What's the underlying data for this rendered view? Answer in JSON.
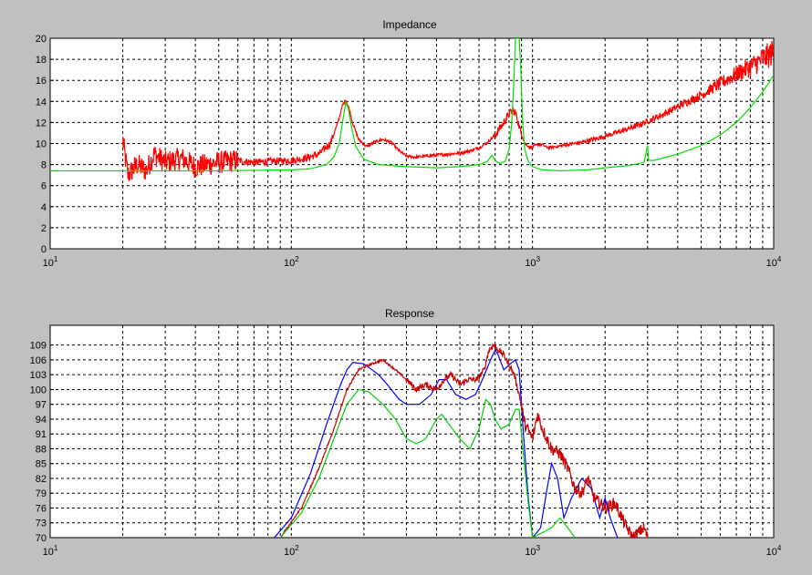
{
  "window": {
    "background": "#c0c0c0"
  },
  "chart_data": [
    {
      "type": "line",
      "title": "Impedance",
      "xlabel": "",
      "ylabel": "",
      "xscale": "log",
      "xlim": [
        10,
        10000
      ],
      "ylim": [
        0,
        20
      ],
      "grid": true,
      "x_ticks": [
        {
          "base": "10",
          "exp": "1",
          "value": 10
        },
        {
          "base": "10",
          "exp": "2",
          "value": 100
        },
        {
          "base": "10",
          "exp": "3",
          "value": 1000
        },
        {
          "base": "10",
          "exp": "4",
          "value": 10000
        }
      ],
      "y_ticks": [
        "0",
        "2",
        "4",
        "6",
        "8",
        "10",
        "12",
        "14",
        "16",
        "18",
        "20"
      ],
      "series": [
        {
          "color": "#ff0000",
          "noise": "heavy",
          "points": [
            [
              20,
              10.3
            ],
            [
              21,
              7.0
            ],
            [
              23,
              8.0
            ],
            [
              25,
              7.4
            ],
            [
              27,
              9.0
            ],
            [
              30,
              8.2
            ],
            [
              35,
              8.6
            ],
            [
              40,
              7.8
            ],
            [
              50,
              8.2
            ],
            [
              60,
              8.4
            ],
            [
              70,
              8.2
            ],
            [
              80,
              8.3
            ],
            [
              100,
              8.4
            ],
            [
              115,
              8.6
            ],
            [
              130,
              9.0
            ],
            [
              145,
              10.0
            ],
            [
              155,
              11.8
            ],
            [
              163,
              13.6
            ],
            [
              168,
              14.2
            ],
            [
              173,
              13.4
            ],
            [
              180,
              11.9
            ],
            [
              190,
              10.4
            ],
            [
              205,
              9.7
            ],
            [
              220,
              10.1
            ],
            [
              240,
              10.4
            ],
            [
              260,
              10.1
            ],
            [
              280,
              9.3
            ],
            [
              300,
              8.8
            ],
            [
              330,
              8.7
            ],
            [
              360,
              8.8
            ],
            [
              400,
              8.9
            ],
            [
              450,
              9.0
            ],
            [
              500,
              9.1
            ],
            [
              550,
              9.3
            ],
            [
              600,
              9.6
            ],
            [
              650,
              10.1
            ],
            [
              700,
              10.8
            ],
            [
              750,
              11.8
            ],
            [
              800,
              12.8
            ],
            [
              830,
              13.2
            ],
            [
              860,
              12.6
            ],
            [
              890,
              11.2
            ],
            [
              930,
              10.0
            ],
            [
              980,
              9.6
            ],
            [
              1050,
              9.9
            ],
            [
              1100,
              9.9
            ],
            [
              1150,
              9.6
            ],
            [
              1250,
              9.7
            ],
            [
              1400,
              9.9
            ],
            [
              1600,
              10.1
            ],
            [
              2000,
              10.7
            ],
            [
              2500,
              11.4
            ],
            [
              3000,
              12.1
            ],
            [
              3500,
              12.8
            ],
            [
              4000,
              13.5
            ],
            [
              5000,
              14.6
            ],
            [
              6000,
              15.7
            ],
            [
              7000,
              16.6
            ],
            [
              8000,
              17.3
            ],
            [
              9000,
              18.0
            ],
            [
              10000,
              18.7
            ]
          ]
        },
        {
          "color": "#00e000",
          "noise": "none",
          "points": [
            [
              10,
              7.4
            ],
            [
              50,
              7.4
            ],
            [
              100,
              7.5
            ],
            [
              120,
              7.6
            ],
            [
              140,
              8.0
            ],
            [
              150,
              8.7
            ],
            [
              158,
              10.0
            ],
            [
              163,
              12.0
            ],
            [
              168,
              13.9
            ],
            [
              172,
              13.4
            ],
            [
              178,
              11.5
            ],
            [
              185,
              9.7
            ],
            [
              200,
              8.5
            ],
            [
              230,
              8.0
            ],
            [
              300,
              7.8
            ],
            [
              400,
              7.7
            ],
            [
              500,
              7.8
            ],
            [
              600,
              8.0
            ],
            [
              650,
              8.3
            ],
            [
              680,
              8.9
            ],
            [
              700,
              8.4
            ],
            [
              730,
              8.1
            ],
            [
              770,
              8.3
            ],
            [
              800,
              9.5
            ],
            [
              820,
              12.0
            ],
            [
              835,
              15.5
            ],
            [
              850,
              20.0
            ],
            [
              880,
              20.0
            ],
            [
              895,
              17.0
            ],
            [
              910,
              12.0
            ],
            [
              930,
              9.4
            ],
            [
              960,
              8.3
            ],
            [
              1000,
              7.8
            ],
            [
              1100,
              7.5
            ],
            [
              1300,
              7.4
            ],
            [
              1700,
              7.5
            ],
            [
              2000,
              7.7
            ],
            [
              2500,
              7.9
            ],
            [
              2900,
              8.2
            ],
            [
              3000,
              9.8
            ],
            [
              3030,
              8.4
            ],
            [
              3200,
              8.4
            ],
            [
              4000,
              9.0
            ],
            [
              5000,
              9.8
            ],
            [
              6000,
              10.8
            ],
            [
              7000,
              12.0
            ],
            [
              8000,
              13.4
            ],
            [
              9000,
              14.9
            ],
            [
              10000,
              16.5
            ]
          ]
        }
      ]
    },
    {
      "type": "line",
      "title": "Response",
      "xlabel": "",
      "ylabel": "",
      "xscale": "log",
      "xlim": [
        10,
        10000
      ],
      "ylim": [
        70,
        113
      ],
      "grid": true,
      "x_ticks": [
        {
          "base": "10",
          "exp": "1",
          "value": 10
        },
        {
          "base": "10",
          "exp": "2",
          "value": 100
        },
        {
          "base": "10",
          "exp": "3",
          "value": 1000
        },
        {
          "base": "10",
          "exp": "4",
          "value": 10000
        }
      ],
      "y_ticks": [
        "70",
        "73",
        "76",
        "79",
        "82",
        "85",
        "88",
        "91",
        "94",
        "97",
        "100",
        "103",
        "106",
        "109"
      ],
      "series": [
        {
          "color": "#0000ff",
          "noise": "none",
          "points": [
            [
              85,
              70
            ],
            [
              100,
              74
            ],
            [
              120,
              83
            ],
            [
              140,
              93
            ],
            [
              160,
              101
            ],
            [
              170,
              104
            ],
            [
              180,
              105.5
            ],
            [
              200,
              105.2
            ],
            [
              230,
              103
            ],
            [
              250,
              101
            ],
            [
              280,
              98
            ],
            [
              300,
              97
            ],
            [
              340,
              97
            ],
            [
              380,
              99
            ],
            [
              410,
              102
            ],
            [
              440,
              102
            ],
            [
              480,
              99
            ],
            [
              530,
              98
            ],
            [
              580,
              99
            ],
            [
              620,
              102
            ],
            [
              670,
              106
            ],
            [
              700,
              108
            ],
            [
              720,
              107
            ],
            [
              760,
              104
            ],
            [
              800,
              105
            ],
            [
              850,
              106
            ],
            [
              880,
              104
            ],
            [
              920,
              90
            ],
            [
              960,
              78
            ],
            [
              1000,
              70
            ],
            [
              1080,
              72
            ],
            [
              1150,
              80
            ],
            [
              1200,
              85
            ],
            [
              1270,
              82
            ],
            [
              1350,
              74
            ],
            [
              1450,
              78
            ],
            [
              1600,
              82
            ],
            [
              1750,
              80
            ],
            [
              1900,
              74
            ],
            [
              2000,
              78
            ],
            [
              2100,
              74
            ],
            [
              2250,
              70
            ]
          ]
        },
        {
          "color": "#cc0000",
          "noise": "light",
          "points": [
            [
              90,
              70
            ],
            [
              110,
              76
            ],
            [
              130,
              84
            ],
            [
              150,
              92
            ],
            [
              170,
              100
            ],
            [
              190,
              104
            ],
            [
              210,
              105
            ],
            [
              240,
              106
            ],
            [
              270,
              104
            ],
            [
              300,
              102
            ],
            [
              330,
              100
            ],
            [
              360,
              101
            ],
            [
              400,
              100
            ],
            [
              430,
              102
            ],
            [
              460,
              103
            ],
            [
              500,
              101
            ],
            [
              540,
              102
            ],
            [
              590,
              102
            ],
            [
              630,
              104
            ],
            [
              660,
              108
            ],
            [
              690,
              109
            ],
            [
              720,
              108
            ],
            [
              760,
              107
            ],
            [
              800,
              105
            ],
            [
              840,
              103
            ],
            [
              880,
              99
            ],
            [
              930,
              93
            ],
            [
              1000,
              90
            ],
            [
              1050,
              95
            ],
            [
              1100,
              92
            ],
            [
              1200,
              88
            ],
            [
              1300,
              87
            ],
            [
              1400,
              84
            ],
            [
              1500,
              80
            ],
            [
              1600,
              79
            ],
            [
              1700,
              82
            ],
            [
              1800,
              78
            ],
            [
              2000,
              76
            ],
            [
              2200,
              77
            ],
            [
              2400,
              73
            ],
            [
              2600,
              70
            ],
            [
              2900,
              72
            ],
            [
              3000,
              70
            ]
          ]
        },
        {
          "color": "#00d000",
          "noise": "none",
          "points": [
            [
              90,
              70
            ],
            [
              110,
              75
            ],
            [
              130,
              82
            ],
            [
              150,
              90
            ],
            [
              170,
              97
            ],
            [
              190,
              100
            ],
            [
              210,
              99.5
            ],
            [
              240,
              97
            ],
            [
              270,
              94
            ],
            [
              300,
              90
            ],
            [
              330,
              89
            ],
            [
              360,
              90
            ],
            [
              400,
              94
            ],
            [
              420,
              95
            ],
            [
              450,
              93
            ],
            [
              500,
              90
            ],
            [
              550,
              88
            ],
            [
              600,
              92
            ],
            [
              640,
              98
            ],
            [
              670,
              97
            ],
            [
              700,
              94
            ],
            [
              740,
              92
            ],
            [
              800,
              93
            ],
            [
              850,
              96
            ],
            [
              880,
              96
            ],
            [
              920,
              86
            ],
            [
              960,
              77
            ],
            [
              1000,
              70
            ],
            [
              1200,
              72
            ],
            [
              1300,
              74
            ],
            [
              1400,
              72
            ],
            [
              1500,
              70
            ]
          ]
        }
      ]
    }
  ]
}
